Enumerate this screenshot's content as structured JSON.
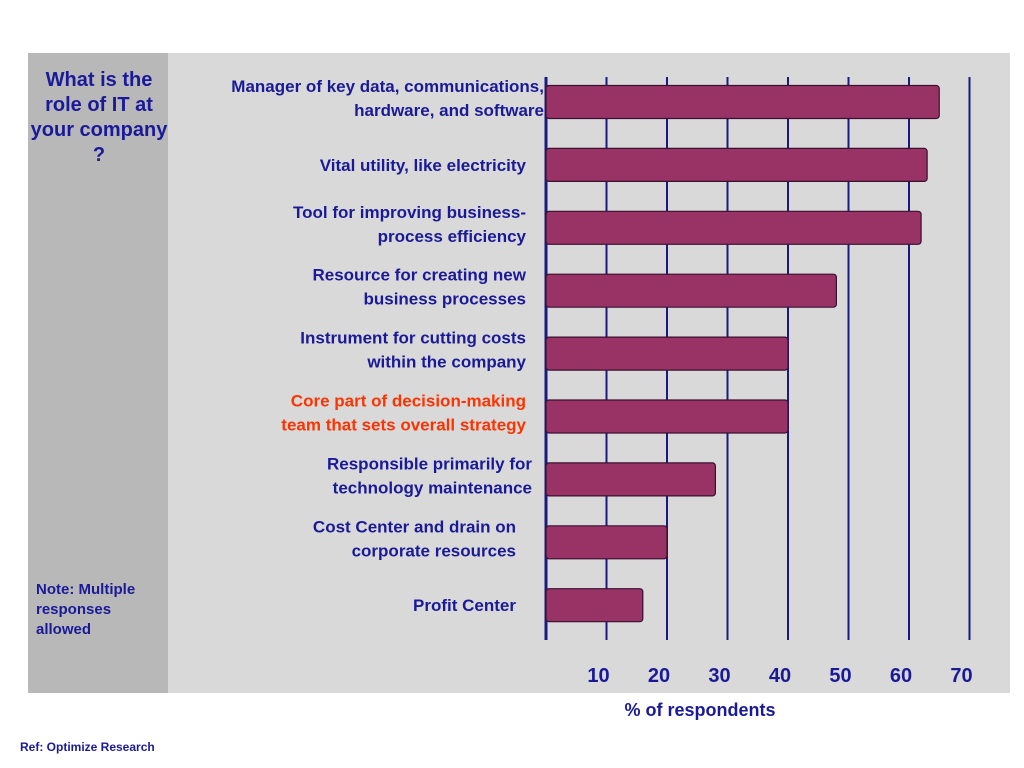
{
  "question": "What is the role of IT at your company ?",
  "note": "Note: Multiple responses allowed",
  "reference": "Ref: Optimize Research",
  "colors": {
    "bar": "#993366",
    "text": "#1a1a99",
    "highlight": "#ff3300",
    "gridline": "#1a1a80"
  },
  "chart_data": {
    "type": "bar",
    "orientation": "horizontal",
    "xlabel": "% of respondents",
    "categories": [
      [
        "Manager of key data, communications,",
        "hardware, and software"
      ],
      [
        "Vital utility, like electricity"
      ],
      [
        "Tool for improving business-",
        "process efficiency"
      ],
      [
        "Resource for creating new",
        "business processes"
      ],
      [
        "Instrument for cutting costs",
        "within the company"
      ],
      [
        "Core part of decision-making",
        "team that sets overall strategy"
      ],
      [
        "Responsible primarily for",
        "technology maintenance"
      ],
      [
        "Cost Center and drain on",
        "corporate resources"
      ],
      [
        "Profit Center"
      ]
    ],
    "values": [
      65,
      63,
      62,
      48,
      40,
      40,
      28,
      20,
      16
    ],
    "highlighted_index": 5,
    "ticks": [
      10,
      20,
      30,
      40,
      50,
      60,
      70
    ],
    "xlim": [
      0,
      72
    ],
    "grid": true
  }
}
